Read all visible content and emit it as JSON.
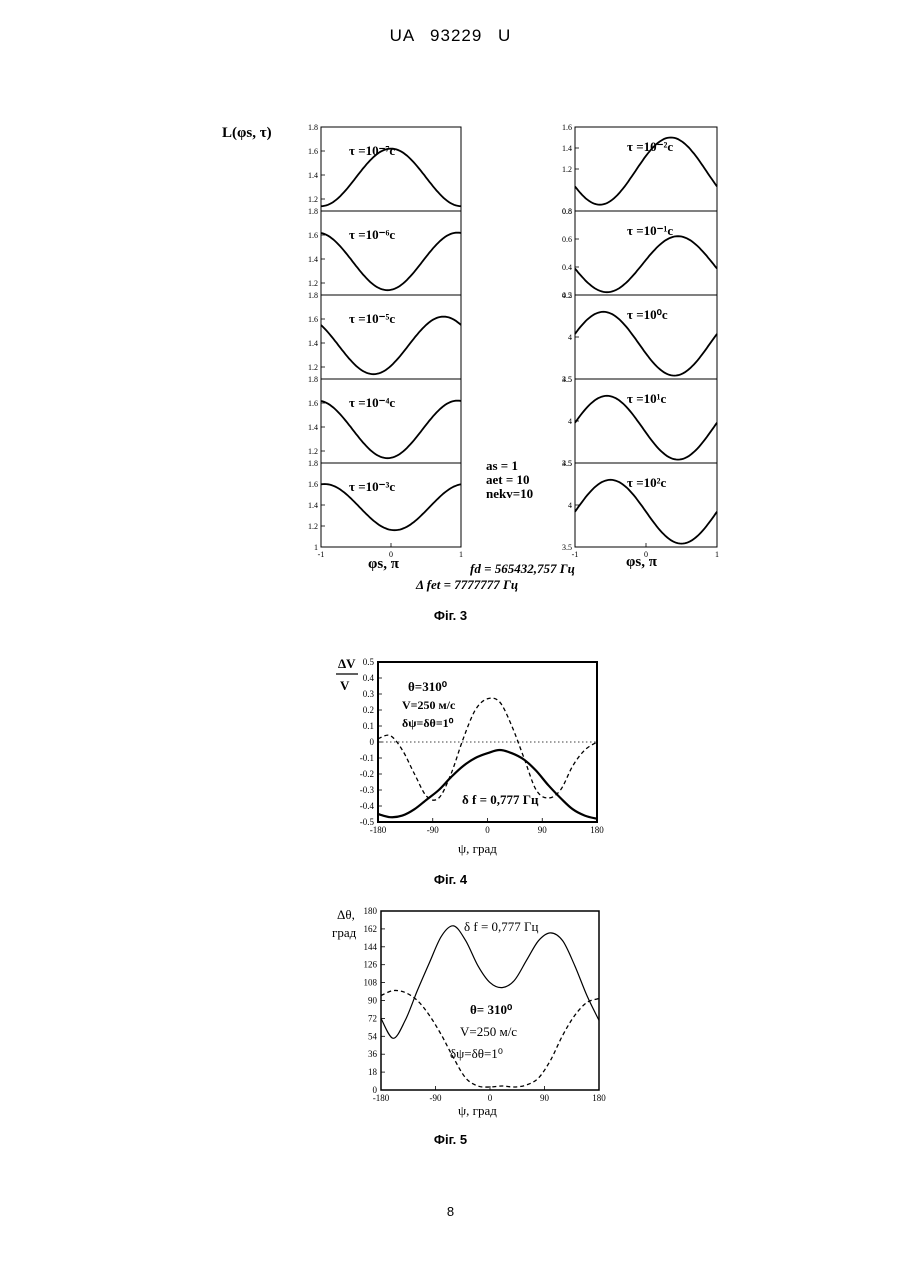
{
  "header": "UA   93229   U",
  "page_number": "8",
  "fig3": {
    "caption": "Фіг. 3",
    "y_label": "L(φs, τ)",
    "left_x_label": "φs, π",
    "right_x_label": "φs, π",
    "x_ticks": [
      "-1",
      "0",
      "1"
    ],
    "params": [
      "as = 1",
      "aet = 10",
      "nekv=10"
    ],
    "fd_label": "fd = 565432,757 Гц",
    "dfet_label": "Δ fet = 7777777 Гц",
    "left_panels": [
      {
        "tau": "τ =10⁻⁷c",
        "ymin": 1.1,
        "ymax": 1.8,
        "ticks": [
          "1.8",
          "1.6",
          "1.4",
          "1.2"
        ],
        "phase": 0,
        "mean": 1.38,
        "amp": 0.24
      },
      {
        "tau": "τ =10⁻⁶c",
        "ymin": 1.1,
        "ymax": 1.8,
        "ticks": [
          "1.8",
          "1.6",
          "1.4",
          "1.2"
        ],
        "phase": 0.95,
        "mean": 1.38,
        "amp": 0.24
      },
      {
        "tau": "τ =10⁻⁵c",
        "ymin": 1.1,
        "ymax": 1.8,
        "ticks": [
          "1.8",
          "1.6",
          "1.4",
          "1.2"
        ],
        "phase": 0.75,
        "mean": 1.38,
        "amp": 0.24
      },
      {
        "tau": "τ =10⁻⁴c",
        "ymin": 1.1,
        "ymax": 1.8,
        "ticks": [
          "1.8",
          "1.6",
          "1.4",
          "1.2"
        ],
        "phase": 0.95,
        "mean": 1.38,
        "amp": 0.24
      },
      {
        "tau": "τ =10⁻³c",
        "ymin": 1.0,
        "ymax": 1.8,
        "ticks": [
          "1.8",
          "1.6",
          "1.4",
          "1.2",
          "1"
        ],
        "phase": 1.05,
        "mean": 1.38,
        "amp": 0.22
      }
    ],
    "right_panels": [
      {
        "tau": "τ =10⁻²c",
        "ymin": 0.8,
        "ymax": 1.6,
        "ticks": [
          "1.6",
          "1.4",
          "1.2",
          "0.8"
        ],
        "phase": 0.35,
        "mean": 1.18,
        "amp": 0.32
      },
      {
        "tau": "τ =10⁻¹c",
        "ymin": 0.2,
        "ymax": 0.8,
        "ticks": [
          "0.8",
          "0.6",
          "0.4",
          "0.2"
        ],
        "phase": 0.45,
        "mean": 0.42,
        "amp": 0.2
      },
      {
        "tau": "τ =10⁰c",
        "ymin": 3.5,
        "ymax": 4.5,
        "ticks": [
          "4.5",
          "4",
          "3.5"
        ],
        "phase": 1.4,
        "mean": 3.92,
        "amp": 0.38
      },
      {
        "tau": "τ =10¹c",
        "ymin": 3.5,
        "ymax": 4.5,
        "ticks": [
          "4.5",
          "4",
          "3.5"
        ],
        "phase": 1.45,
        "mean": 3.92,
        "amp": 0.38
      },
      {
        "tau": "τ =10²c",
        "ymin": 3.5,
        "ymax": 4.5,
        "ticks": [
          "4.5",
          "4",
          "3.5"
        ],
        "phase": 1.5,
        "mean": 3.92,
        "amp": 0.38
      }
    ]
  },
  "fig4": {
    "caption": "Фіг. 4",
    "y_label_num": "ΔV",
    "y_label_den": "V",
    "x_label": "ψ, град",
    "annot_theta": "θ=310⁰",
    "annot_v": "V=250 м/с",
    "annot_dpsi": "δψ=δθ=1⁰",
    "annot_df": "δ f = 0,777 Гц",
    "y_ticks": [
      "0.5",
      "0.4",
      "0.3",
      "0.2",
      "0.1",
      "0",
      "-0.1",
      "-0.2",
      "-0.3",
      "-0.4",
      "-0.5"
    ],
    "x_ticks": [
      "-180",
      "-90",
      "0",
      "90",
      "180"
    ],
    "chart_data": {
      "type": "line",
      "xlim": [
        -180,
        180
      ],
      "ylim": [
        -0.5,
        0.5
      ],
      "x": [
        -180,
        -160,
        -140,
        -120,
        -100,
        -80,
        -60,
        -40,
        -20,
        0,
        20,
        40,
        60,
        80,
        100,
        120,
        140,
        160,
        180
      ],
      "series": [
        {
          "style": "solid",
          "values": [
            -0.45,
            -0.47,
            -0.46,
            -0.42,
            -0.36,
            -0.3,
            -0.22,
            -0.15,
            -0.1,
            -0.07,
            -0.05,
            -0.07,
            -0.11,
            -0.18,
            -0.27,
            -0.35,
            -0.42,
            -0.46,
            -0.48
          ]
        },
        {
          "style": "dashed",
          "values": [
            0.02,
            0.04,
            -0.05,
            -0.2,
            -0.34,
            -0.35,
            -0.2,
            0.02,
            0.2,
            0.27,
            0.25,
            0.1,
            -0.1,
            -0.3,
            -0.35,
            -0.3,
            -0.15,
            -0.05,
            0
          ]
        },
        {
          "style": "dotted",
          "values": [
            0,
            0,
            0,
            0,
            0,
            0,
            0,
            0,
            0,
            0,
            0,
            0,
            0,
            0,
            0,
            0,
            0,
            0,
            0
          ]
        }
      ]
    }
  },
  "fig5": {
    "caption": "Фіг. 5",
    "y_label_1": "Δθ,",
    "y_label_2": "град",
    "x_label": "ψ, град",
    "annot_df": "δ f = 0,777 Гц",
    "annot_theta": "θ= 310⁰",
    "annot_v": "V=250 м/с",
    "annot_dpsi": "δψ=δθ=1⁰",
    "y_ticks": [
      "180",
      "162",
      "144",
      "126",
      "108",
      "90",
      "72",
      "54",
      "36",
      "18",
      "0"
    ],
    "x_ticks": [
      "-180",
      "-90",
      "0",
      "90",
      "180"
    ],
    "chart_data": {
      "type": "line",
      "xlim": [
        -180,
        180
      ],
      "ylim": [
        0,
        180
      ],
      "x": [
        -180,
        -160,
        -140,
        -120,
        -100,
        -80,
        -60,
        -40,
        -20,
        0,
        20,
        40,
        60,
        80,
        100,
        120,
        140,
        160,
        180
      ],
      "series": [
        {
          "style": "solid",
          "values": [
            72,
            52,
            70,
            100,
            128,
            155,
            165,
            150,
            125,
            108,
            103,
            110,
            130,
            150,
            158,
            150,
            125,
            95,
            70
          ]
        },
        {
          "style": "dashed",
          "values": [
            95,
            100,
            98,
            90,
            75,
            55,
            32,
            12,
            4,
            3,
            4,
            3,
            5,
            12,
            30,
            55,
            75,
            88,
            92
          ]
        }
      ]
    }
  }
}
